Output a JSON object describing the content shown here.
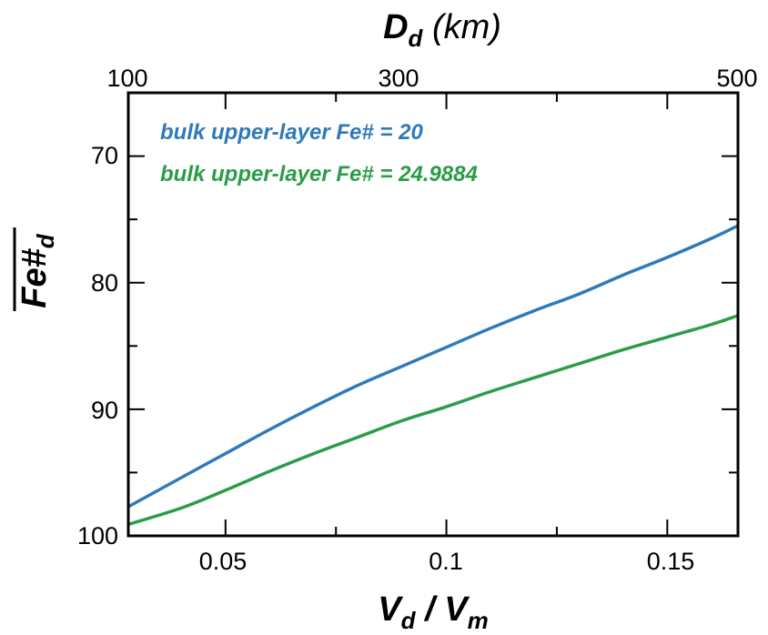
{
  "chart_data": {
    "type": "line",
    "xaxis": {
      "min": 0.028,
      "max": 0.166,
      "ticks": [
        0.05,
        0.1,
        0.15
      ],
      "tick_labels": [
        "0.05",
        "0.1",
        "0.15"
      ],
      "minor_ticks": [
        0.075,
        0.125
      ]
    },
    "top_axis": {
      "title_main": "D",
      "title_sub": "d",
      "title_unit": " (km)",
      "tick_labels": [
        "100",
        "300",
        "500"
      ],
      "tick_positions": [
        0.028,
        0.0988,
        0.166
      ]
    },
    "yaxis": {
      "min": 65,
      "max": 100,
      "inverted": true,
      "ticks": [
        70,
        80,
        90,
        100
      ],
      "tick_labels": [
        "70",
        "80",
        "90",
        "100"
      ],
      "minor_ticks": [
        75,
        85,
        95
      ]
    },
    "xlabel": {
      "v1": "V",
      "s1": "d",
      "sep": " / ",
      "v2": "V",
      "s2": "m"
    },
    "ylabel": {
      "main": "Fe#",
      "sub": "d"
    },
    "grid": false,
    "legend_position": "top-left",
    "series": [
      {
        "name": "bulk upper-layer Fe# = 20",
        "color": "#2f7ab8",
        "x": [
          0.028,
          0.04,
          0.05,
          0.06,
          0.07,
          0.08,
          0.09,
          0.1,
          0.11,
          0.12,
          0.13,
          0.14,
          0.15,
          0.16,
          0.166
        ],
        "y": [
          97.7,
          95.4,
          93.5,
          91.6,
          89.8,
          88.1,
          86.6,
          85.1,
          83.6,
          82.2,
          80.9,
          79.4,
          78.0,
          76.5,
          75.5
        ]
      },
      {
        "name": "bulk upper-layer Fe# = 24.9884",
        "color": "#2a9d48",
        "x": [
          0.028,
          0.04,
          0.05,
          0.06,
          0.07,
          0.08,
          0.09,
          0.1,
          0.11,
          0.12,
          0.13,
          0.14,
          0.15,
          0.16,
          0.166
        ],
        "y": [
          99.1,
          97.8,
          96.4,
          94.9,
          93.5,
          92.2,
          90.9,
          89.8,
          88.6,
          87.5,
          86.4,
          85.3,
          84.3,
          83.3,
          82.6
        ]
      }
    ]
  }
}
